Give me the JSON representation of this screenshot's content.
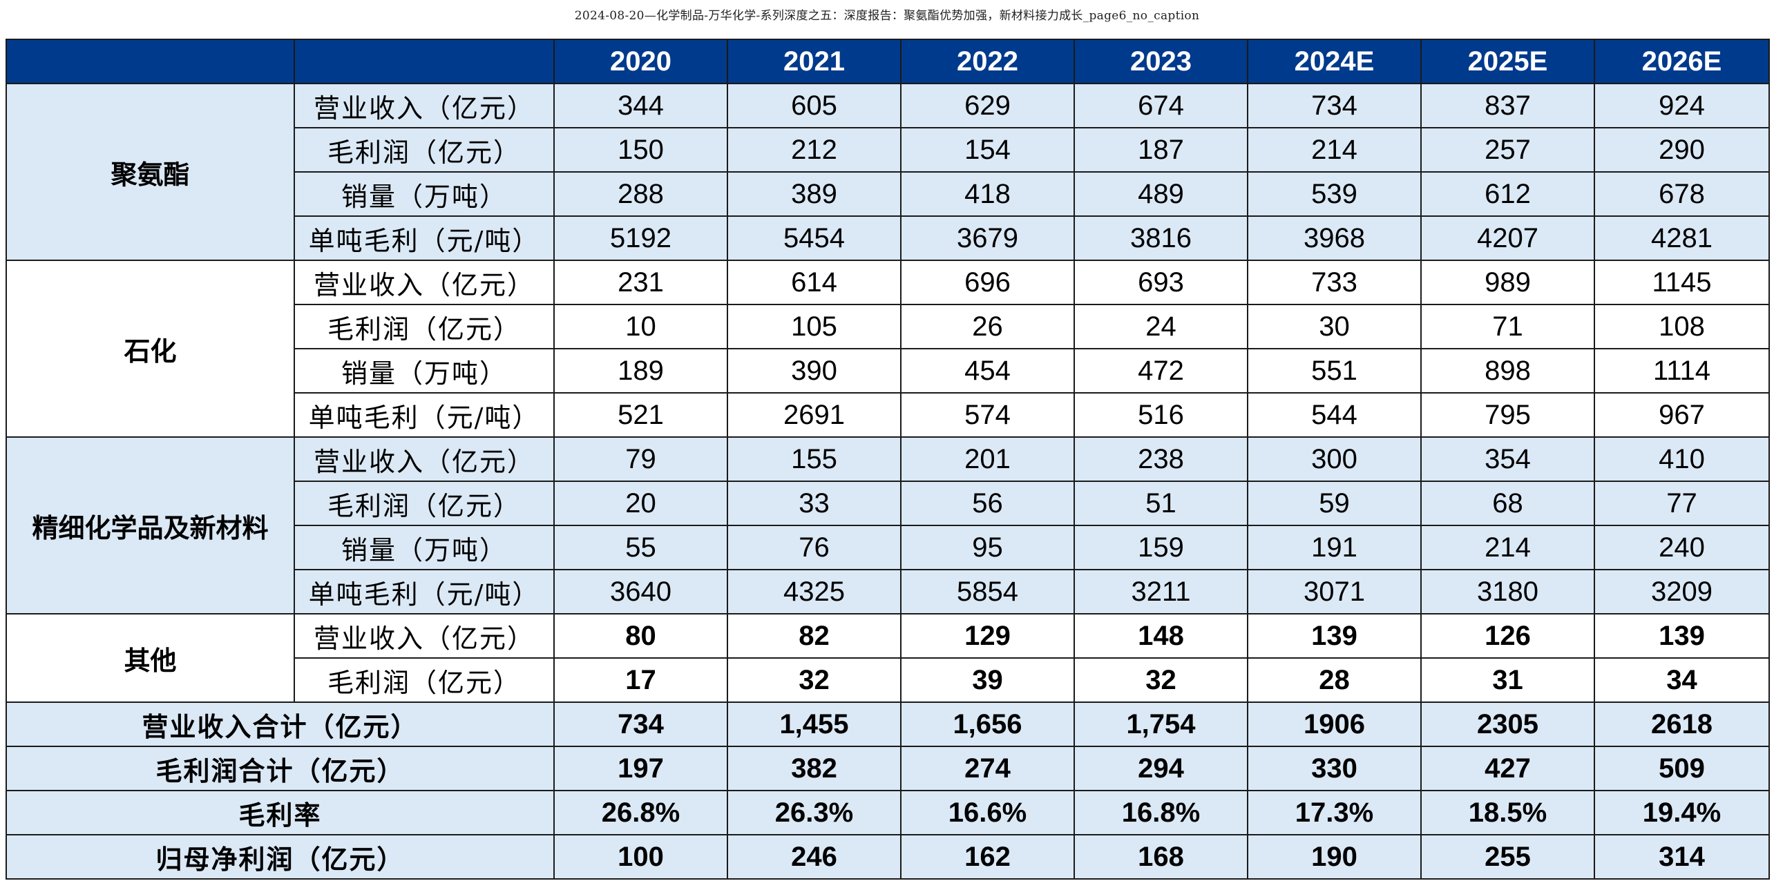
{
  "doc_title": "2024-08-20—化学制品-万华化学-系列深度之五：深度报告：聚氨酯优势加强，新材料接力成长_page6_no_caption",
  "table": {
    "years": [
      "2020",
      "2021",
      "2022",
      "2023",
      "2024E",
      "2025E",
      "2026E"
    ],
    "segments": [
      {
        "name": "聚氨酯",
        "rows": [
          {
            "label": "营业收入（亿元）",
            "values": [
              "344",
              "605",
              "629",
              "674",
              "734",
              "837",
              "924"
            ]
          },
          {
            "label": "毛利润（亿元）",
            "values": [
              "150",
              "212",
              "154",
              "187",
              "214",
              "257",
              "290"
            ]
          },
          {
            "label": "销量（万吨）",
            "values": [
              "288",
              "389",
              "418",
              "489",
              "539",
              "612",
              "678"
            ]
          },
          {
            "label": "单吨毛利（元/吨）",
            "values": [
              "5192",
              "5454",
              "3679",
              "3816",
              "3968",
              "4207",
              "4281"
            ]
          }
        ]
      },
      {
        "name": "石化",
        "rows": [
          {
            "label": "营业收入（亿元）",
            "values": [
              "231",
              "614",
              "696",
              "693",
              "733",
              "989",
              "1145"
            ]
          },
          {
            "label": "毛利润（亿元）",
            "values": [
              "10",
              "105",
              "26",
              "24",
              "30",
              "71",
              "108"
            ]
          },
          {
            "label": "销量（万吨）",
            "values": [
              "189",
              "390",
              "454",
              "472",
              "551",
              "898",
              "1114"
            ]
          },
          {
            "label": "单吨毛利（元/吨）",
            "values": [
              "521",
              "2691",
              "574",
              "516",
              "544",
              "795",
              "967"
            ]
          }
        ]
      },
      {
        "name": "精细化学品及新材料",
        "rows": [
          {
            "label": "营业收入（亿元）",
            "values": [
              "79",
              "155",
              "201",
              "238",
              "300",
              "354",
              "410"
            ]
          },
          {
            "label": "毛利润（亿元）",
            "values": [
              "20",
              "33",
              "56",
              "51",
              "59",
              "68",
              "77"
            ]
          },
          {
            "label": "销量（万吨）",
            "values": [
              "55",
              "76",
              "95",
              "159",
              "191",
              "214",
              "240"
            ]
          },
          {
            "label": "单吨毛利（元/吨）",
            "values": [
              "3640",
              "4325",
              "5854",
              "3211",
              "3071",
              "3180",
              "3209"
            ]
          }
        ]
      },
      {
        "name": "其他",
        "rows": [
          {
            "label": "营业收入（亿元）",
            "values": [
              "80",
              "82",
              "129",
              "148",
              "139",
              "126",
              "139"
            ]
          },
          {
            "label": "毛利润（亿元）",
            "values": [
              "17",
              "32",
              "39",
              "32",
              "28",
              "31",
              "34"
            ]
          }
        ]
      }
    ],
    "totals": [
      {
        "label": "营业收入合计（亿元）",
        "values": [
          "734",
          "1,455",
          "1,656",
          "1,754",
          "1906",
          "2305",
          "2618"
        ]
      },
      {
        "label": "毛利润合计（亿元）",
        "values": [
          "197",
          "382",
          "274",
          "294",
          "330",
          "427",
          "509"
        ]
      },
      {
        "label": "毛利率",
        "values": [
          "26.8%",
          "26.3%",
          "16.6%",
          "16.8%",
          "17.3%",
          "18.5%",
          "19.4%"
        ]
      },
      {
        "label": "归母净利润（亿元）",
        "values": [
          "100",
          "246",
          "162",
          "168",
          "190",
          "255",
          "314"
        ]
      }
    ]
  }
}
